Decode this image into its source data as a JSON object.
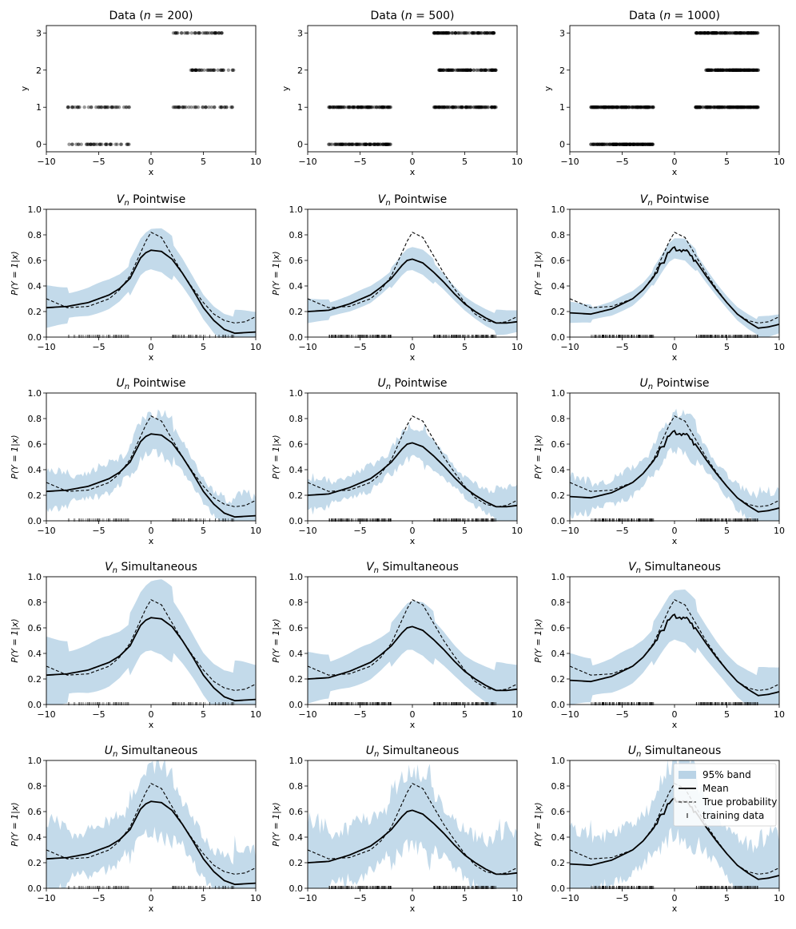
{
  "figure": {
    "xlabel": "x",
    "data_ylabel": "y",
    "prob_ylabel": "P(Y = 1|x)",
    "legend": {
      "band": "95% band",
      "mean": "Mean",
      "truth": "True probability",
      "training": "training data"
    },
    "colors": {
      "band": "#b9d3e6",
      "mean": "#000000",
      "truth": "#000000",
      "points": "#000000"
    }
  },
  "columns": [
    {
      "title_prefix": "Data (",
      "n_symbol": "n",
      "n_value": " = 200",
      "title_suffix": ")",
      "n": 200
    },
    {
      "title_prefix": "Data (",
      "n_symbol": "n",
      "n_value": " = 500",
      "title_suffix": ")",
      "n": 500
    },
    {
      "title_prefix": "Data (",
      "n_symbol": "n",
      "n_value": " = 1000",
      "title_suffix": ")",
      "n": 1000
    }
  ],
  "rows": [
    {
      "symbol": "V",
      "subscript": "n",
      "label": " Pointwise"
    },
    {
      "symbol": "U",
      "subscript": "n",
      "label": " Pointwise"
    },
    {
      "symbol": "V",
      "subscript": "n",
      "label": " Simultaneous"
    },
    {
      "symbol": "U",
      "subscript": "n",
      "label": " Simultaneous"
    }
  ],
  "chart_data": [
    {
      "type": "scatter",
      "panel": "data",
      "title": "Data (n = 200)",
      "xlabel": "x",
      "ylabel": "y",
      "xlim": [
        -10,
        10
      ],
      "ylim": [
        -0.2,
        3.2
      ],
      "xticks": [
        -10,
        -5,
        0,
        5,
        10
      ],
      "yticks": [
        0,
        1,
        2,
        3
      ],
      "groups": [
        {
          "y": 0,
          "x_range": [
            -8,
            -2
          ]
        },
        {
          "y": 1,
          "x_range": [
            -8,
            -2
          ]
        },
        {
          "y": 1,
          "x_range": [
            2,
            8
          ]
        },
        {
          "y": 2,
          "x_range": [
            3.5,
            8
          ]
        },
        {
          "y": 3,
          "x_range": [
            2,
            7
          ]
        }
      ]
    },
    {
      "type": "scatter",
      "panel": "data",
      "title": "Data (n = 500)",
      "xlabel": "x",
      "ylabel": "y",
      "xlim": [
        -10,
        10
      ],
      "ylim": [
        -0.2,
        3.2
      ],
      "xticks": [
        -10,
        -5,
        0,
        5,
        10
      ],
      "yticks": [
        0,
        1,
        2,
        3
      ],
      "groups": [
        {
          "y": 0,
          "x_range": [
            -8,
            -2
          ]
        },
        {
          "y": 1,
          "x_range": [
            -8,
            -2
          ]
        },
        {
          "y": 1,
          "x_range": [
            2,
            8
          ]
        },
        {
          "y": 2,
          "x_range": [
            2.5,
            8
          ]
        },
        {
          "y": 3,
          "x_range": [
            2,
            8
          ]
        }
      ]
    },
    {
      "type": "scatter",
      "panel": "data",
      "title": "Data (n = 1000)",
      "xlabel": "x",
      "ylabel": "y",
      "xlim": [
        -10,
        10
      ],
      "ylim": [
        -0.2,
        3.2
      ],
      "xticks": [
        -10,
        -5,
        0,
        5,
        10
      ],
      "yticks": [
        0,
        1,
        2,
        3
      ],
      "groups": [
        {
          "y": 0,
          "x_range": [
            -8,
            -2
          ]
        },
        {
          "y": 1,
          "x_range": [
            -8,
            -2
          ]
        },
        {
          "y": 1,
          "x_range": [
            2,
            8
          ]
        },
        {
          "y": 2,
          "x_range": [
            3,
            8
          ]
        },
        {
          "y": 3,
          "x_range": [
            2,
            8
          ]
        }
      ]
    },
    {
      "type": "line",
      "panel": "probability",
      "xlim": [
        -10,
        10
      ],
      "ylim": [
        0,
        1.0
      ],
      "xticks": [
        -10,
        -5,
        0,
        5,
        10
      ],
      "yticks": [
        0.0,
        0.2,
        0.4,
        0.6,
        0.8,
        1.0
      ],
      "x": [
        -10,
        -8,
        -6,
        -4,
        -3,
        -2,
        -1,
        -0.5,
        0,
        1,
        2,
        3,
        4,
        5,
        6,
        7,
        8,
        9,
        10
      ],
      "true_probability": [
        0.3,
        0.23,
        0.24,
        0.3,
        0.37,
        0.48,
        0.66,
        0.75,
        0.82,
        0.78,
        0.64,
        0.5,
        0.38,
        0.27,
        0.18,
        0.13,
        0.11,
        0.12,
        0.16
      ],
      "mean_by_n": {
        "200": [
          0.23,
          0.24,
          0.27,
          0.33,
          0.38,
          0.46,
          0.62,
          0.66,
          0.68,
          0.67,
          0.61,
          0.5,
          0.37,
          0.23,
          0.13,
          0.06,
          0.03,
          0.035,
          0.04
        ],
        "500": [
          0.2,
          0.21,
          0.26,
          0.33,
          0.39,
          0.46,
          0.56,
          0.6,
          0.61,
          0.58,
          0.51,
          0.43,
          0.34,
          0.26,
          0.2,
          0.15,
          0.11,
          0.11,
          0.12
        ],
        "1000": [
          0.19,
          0.18,
          0.22,
          0.3,
          0.37,
          0.47,
          0.6,
          0.66,
          0.69,
          0.68,
          0.6,
          0.48,
          0.37,
          0.27,
          0.18,
          0.12,
          0.07,
          0.08,
          0.1
        ]
      },
      "band_halfwidth": {
        "V_pointwise": {
          "200": 0.14,
          "500": 0.08,
          "1000": 0.07
        },
        "U_pointwise": {
          "200": 0.13,
          "500": 0.11,
          "1000": 0.12
        },
        "V_simultaneous": {
          "200": 0.24,
          "500": 0.17,
          "1000": 0.17
        },
        "U_simultaneous": {
          "200": 0.22,
          "500": 0.25,
          "1000": 0.25
        }
      },
      "training_data_x_ranges": [
        [
          -8,
          -2
        ],
        [
          2,
          8
        ]
      ]
    }
  ]
}
